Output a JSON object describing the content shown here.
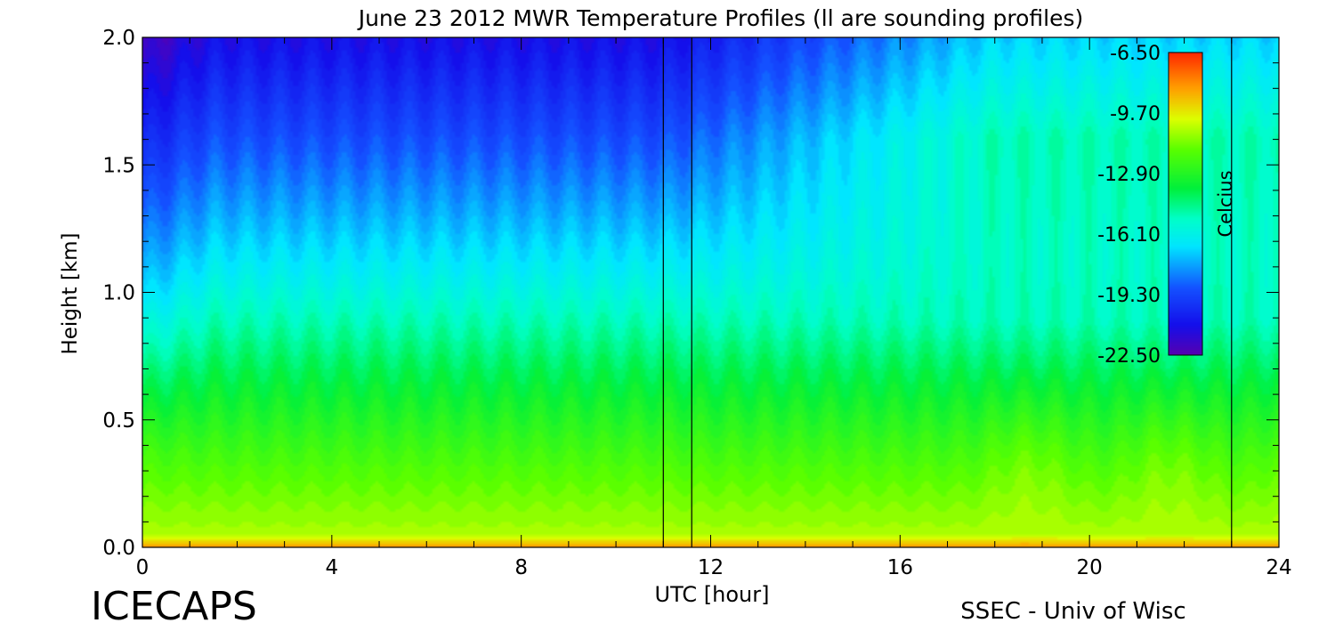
{
  "chart_data": {
    "type": "heatmap",
    "title": "June 23 2012 MWR Temperature Profiles (ll are sounding profiles)",
    "xlabel": "UTC [hour]",
    "ylabel": "Height [km]",
    "xlim": [
      0,
      24
    ],
    "ylim": [
      0,
      2.0
    ],
    "x_ticks": [
      "0",
      "4",
      "8",
      "12",
      "16",
      "20",
      "24"
    ],
    "y_ticks": [
      "0.0",
      "0.5",
      "1.0",
      "1.5",
      "2.0"
    ],
    "x_tick_values": [
      0,
      4,
      8,
      12,
      16,
      20,
      24
    ],
    "y_tick_values": [
      0,
      0.5,
      1.0,
      1.5,
      2.0
    ],
    "colorbar": {
      "label": "Celcius",
      "min": -22.5,
      "max": -6.5,
      "tick_labels": [
        "-6.50",
        "-9.70",
        "-12.90",
        "-16.10",
        "-19.30",
        "-22.50"
      ],
      "tick_values": [
        -6.5,
        -9.7,
        -12.9,
        -16.1,
        -19.3,
        -22.5
      ]
    },
    "sounding_times_utc": [
      11.0,
      11.6,
      23.0
    ],
    "surface_temperature_c": -10.5,
    "temperature_at_1km_c": -15.8,
    "temperature_at_2km_c": -21.0
  },
  "footer": {
    "left_brand": "ICECAPS",
    "right_credit": "SSEC - Univ of Wisc"
  },
  "colors": {
    "axis": "#000000",
    "background": "#ffffff"
  }
}
